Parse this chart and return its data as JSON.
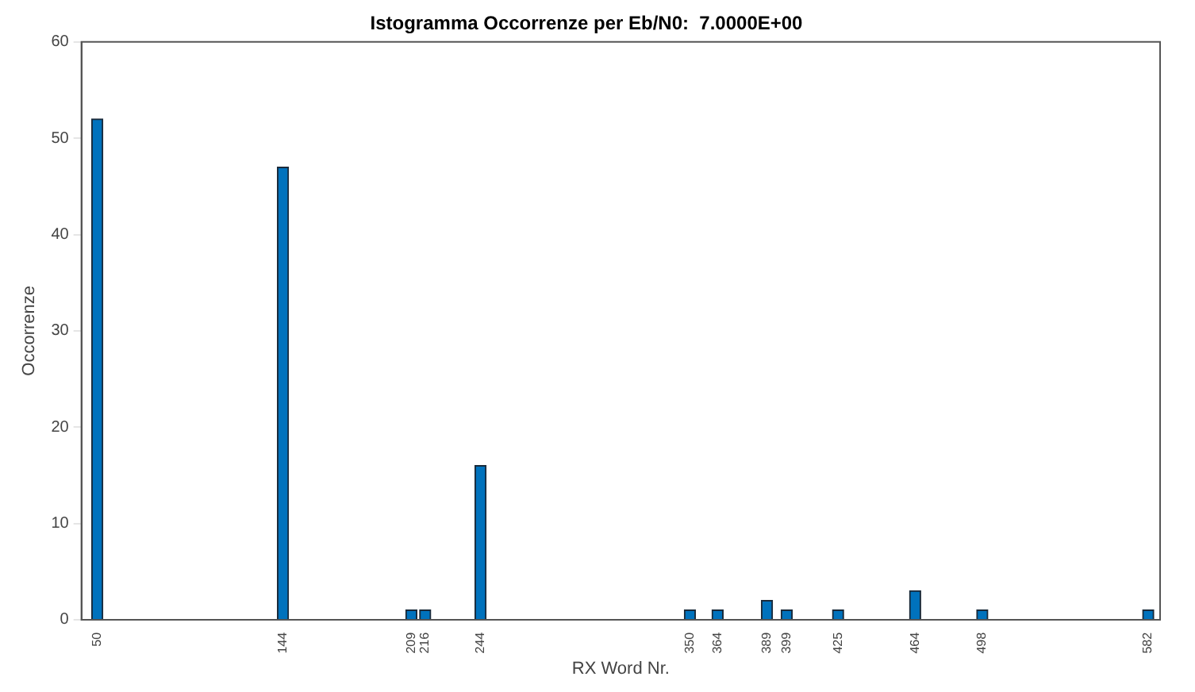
{
  "chart_data": {
    "type": "bar",
    "title": "Istogramma Occorrenze per Eb/N0:  7.0000E+00",
    "xlabel": "RX Word Nr.",
    "ylabel": "Occorrenze",
    "x": [
      50,
      144,
      209,
      216,
      244,
      350,
      364,
      389,
      399,
      425,
      464,
      498,
      582
    ],
    "values": [
      52,
      47,
      1,
      1,
      16,
      1,
      1,
      2,
      1,
      1,
      3,
      1,
      1
    ],
    "color": "#0072bd",
    "xlim": [
      42,
      588
    ],
    "xticks": [
      50,
      144,
      209,
      216,
      244,
      350,
      364,
      389,
      399,
      425,
      464,
      498,
      582
    ],
    "ylim": [
      0,
      60
    ],
    "yticks": [
      0,
      10,
      20,
      30,
      40,
      50,
      60
    ],
    "grid": false,
    "legend": false
  }
}
